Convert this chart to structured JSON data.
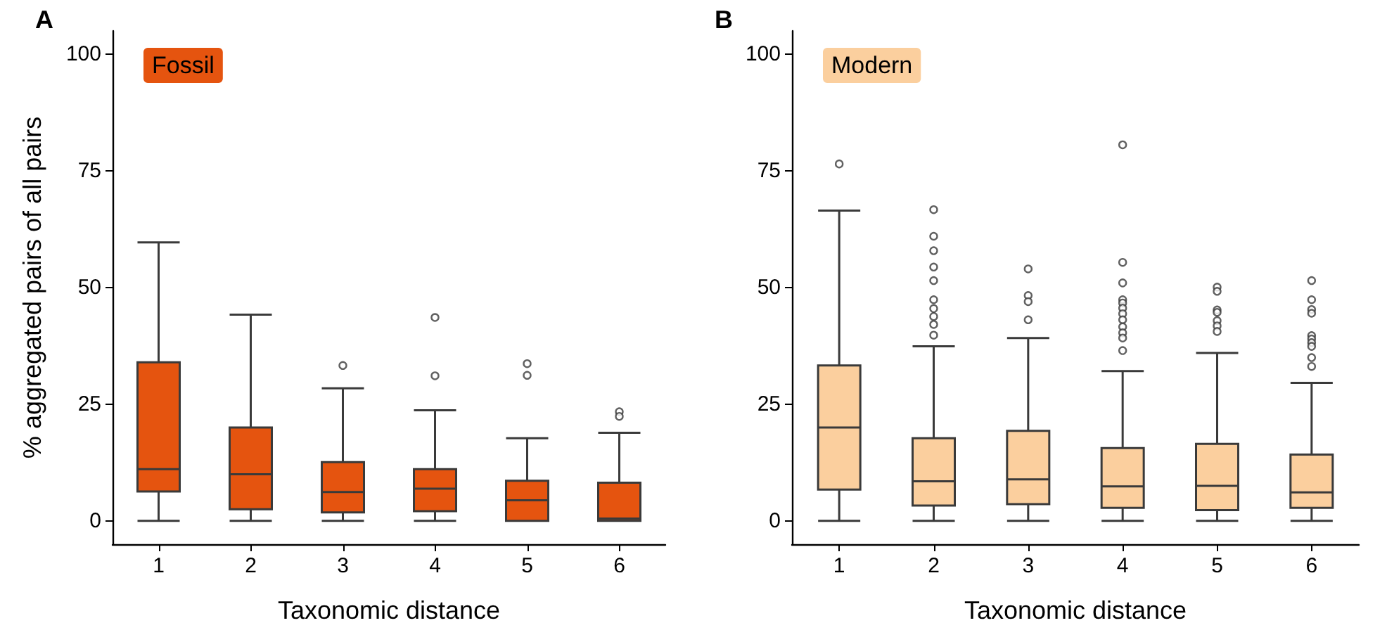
{
  "chart_data": [
    {
      "type": "box",
      "title": "A",
      "xlabel": "Taxonomic distance",
      "ylabel": "% aggregated pairs of all pairs",
      "categories": [
        "1",
        "2",
        "3",
        "4",
        "5",
        "6"
      ],
      "ylim": [
        -5,
        105
      ],
      "yticks": [
        0,
        25,
        50,
        75,
        100
      ],
      "grid": false,
      "legend": "top left",
      "series": [
        {
          "name": "Fossil",
          "color": "#e5540f",
          "boxes": [
            {
              "low": 0,
              "q1": 6.3,
              "median": 11.1,
              "q3": 34,
              "high": 59.7
            },
            {
              "low": 0,
              "q1": 2.5,
              "median": 10,
              "q3": 20,
              "high": 44.2
            },
            {
              "low": 0,
              "q1": 1.8,
              "median": 6.2,
              "q3": 12.6,
              "high": 28.4,
              "outliers": [
                33.3
              ]
            },
            {
              "low": 0,
              "q1": 2.1,
              "median": 6.9,
              "q3": 11.1,
              "high": 23.7,
              "outliers": [
                43.6,
                31.1
              ]
            },
            {
              "low": 0,
              "q1": 0,
              "median": 4.4,
              "q3": 8.6,
              "high": 17.7,
              "outliers": [
                33.7,
                31.2
              ]
            },
            {
              "low": 0,
              "q1": 0,
              "median": 0.5,
              "q3": 8.2,
              "high": 18.9,
              "outliers": [
                23.4,
                22.4
              ]
            }
          ]
        }
      ]
    },
    {
      "type": "box",
      "title": "B",
      "xlabel": "Taxonomic distance",
      "categories": [
        "1",
        "2",
        "3",
        "4",
        "5",
        "6"
      ],
      "ylim": [
        -5,
        105
      ],
      "yticks": [
        0,
        25,
        50,
        75,
        100
      ],
      "grid": false,
      "legend": "top left",
      "series": [
        {
          "name": "Modern",
          "color": "#fbcf9e",
          "boxes": [
            {
              "low": 0,
              "q1": 6.7,
              "median": 20,
              "q3": 33.3,
              "high": 66.5,
              "outliers": [
                76.5
              ]
            },
            {
              "low": 0,
              "q1": 3.3,
              "median": 8.5,
              "q3": 17.7,
              "high": 37.4,
              "outliers": [
                66.7,
                61,
                57.9,
                54.4,
                51.5,
                47.4,
                45.5,
                43.8,
                42.1,
                39.8
              ]
            },
            {
              "low": 0,
              "q1": 3.6,
              "median": 8.9,
              "q3": 19.3,
              "high": 39.2,
              "outliers": [
                54,
                48.3,
                47,
                43.1
              ]
            },
            {
              "low": 0,
              "q1": 2.8,
              "median": 7.4,
              "q3": 15.6,
              "high": 32.1,
              "outliers": [
                80.6,
                55.4,
                51,
                47.4,
                46.7,
                45.6,
                44.4,
                43.1,
                41.6,
                40.3,
                39.2,
                36.5
              ]
            },
            {
              "low": 0,
              "q1": 2.3,
              "median": 7.5,
              "q3": 16.5,
              "high": 36,
              "outliers": [
                50.1,
                49.2,
                45.2,
                44.7,
                42.9,
                41.8,
                40.6
              ]
            },
            {
              "low": 0,
              "q1": 2.8,
              "median": 6.1,
              "q3": 14.2,
              "high": 29.6,
              "outliers": [
                51.5,
                47.4,
                45.3,
                44.5,
                39.7,
                39,
                38.2,
                37.4,
                35,
                33.1
              ]
            }
          ]
        }
      ]
    }
  ]
}
